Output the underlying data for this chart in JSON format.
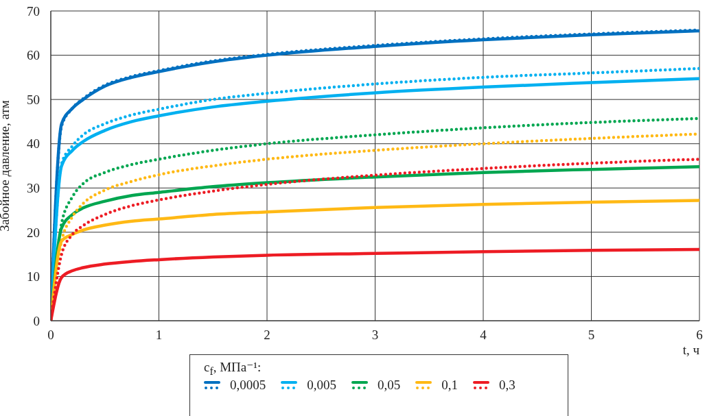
{
  "chart_data": {
    "type": "line",
    "xlabel": "t, ч",
    "ylabel": "Забойное давление, атм",
    "legend_title": "c$_{f}$, МПа⁻¹:",
    "x": [
      0,
      0.1,
      0.2,
      0.3,
      0.5,
      0.75,
      1,
      1.5,
      2,
      3,
      4,
      5,
      6
    ],
    "xlim": [
      0,
      6
    ],
    "xticks": [
      0,
      1,
      2,
      3,
      4,
      5,
      6
    ],
    "ylim": [
      0,
      70
    ],
    "yticks": [
      0,
      10,
      20,
      30,
      40,
      50,
      60,
      70
    ],
    "grid": true,
    "legend": "bottom",
    "series": [
      {
        "name": "0,0005",
        "color": "#0070c0",
        "line_style": "solid",
        "values": [
          0,
          44.5,
          48,
          50,
          53,
          55,
          56.3,
          58.5,
          60,
          62,
          63.5,
          64.6,
          65.5
        ]
      },
      {
        "color": "#0070c0",
        "line_style": "dotted",
        "values": [
          0,
          44,
          48,
          50.2,
          53.2,
          55.2,
          56.5,
          58.7,
          60.2,
          62.2,
          63.7,
          64.8,
          65.7
        ]
      },
      {
        "name": "0,005",
        "color": "#00b0f0",
        "line_style": "solid",
        "values": [
          0,
          35,
          38.5,
          40.5,
          43,
          45,
          46.3,
          48.3,
          49.6,
          51.5,
          52.8,
          53.8,
          54.7
        ]
      },
      {
        "color": "#00b0f0",
        "line_style": "dotted",
        "values": [
          0,
          35.5,
          39.5,
          42,
          44.5,
          46.5,
          47.8,
          50,
          51.4,
          53.5,
          55,
          56,
          57
        ]
      },
      {
        "name": "0,05",
        "color": "#00a650",
        "line_style": "solid",
        "values": [
          0,
          21,
          24,
          25.5,
          27,
          28.3,
          29,
          30.3,
          31.2,
          32.5,
          33.5,
          34.2,
          34.8
        ]
      },
      {
        "color": "#00a650",
        "line_style": "dotted",
        "values": [
          0,
          22,
          28,
          31,
          33.5,
          35.3,
          36.5,
          38.5,
          40,
          42,
          43.6,
          44.8,
          45.7
        ]
      },
      {
        "name": "0,1",
        "color": "#ffb915",
        "line_style": "solid",
        "values": [
          0,
          18,
          19.5,
          20.5,
          21.6,
          22.5,
          23,
          24,
          24.6,
          25.6,
          26.3,
          26.8,
          27.2
        ]
      },
      {
        "color": "#ffb915",
        "line_style": "dotted",
        "values": [
          0,
          18,
          23.5,
          26.5,
          29.5,
          31.5,
          33,
          35,
          36.5,
          38.5,
          40,
          41.2,
          42.2
        ]
      },
      {
        "name": "0,3",
        "color": "#ed1c24",
        "line_style": "solid",
        "values": [
          0,
          9.8,
          11.3,
          12,
          12.8,
          13.4,
          13.8,
          14.4,
          14.8,
          15.2,
          15.6,
          15.9,
          16.1
        ]
      },
      {
        "color": "#ed1c24",
        "line_style": "dotted",
        "values": [
          0,
          15,
          19.5,
          21.5,
          24,
          26,
          27.3,
          29.3,
          30.8,
          32.9,
          34.4,
          35.6,
          36.5
        ]
      }
    ]
  }
}
